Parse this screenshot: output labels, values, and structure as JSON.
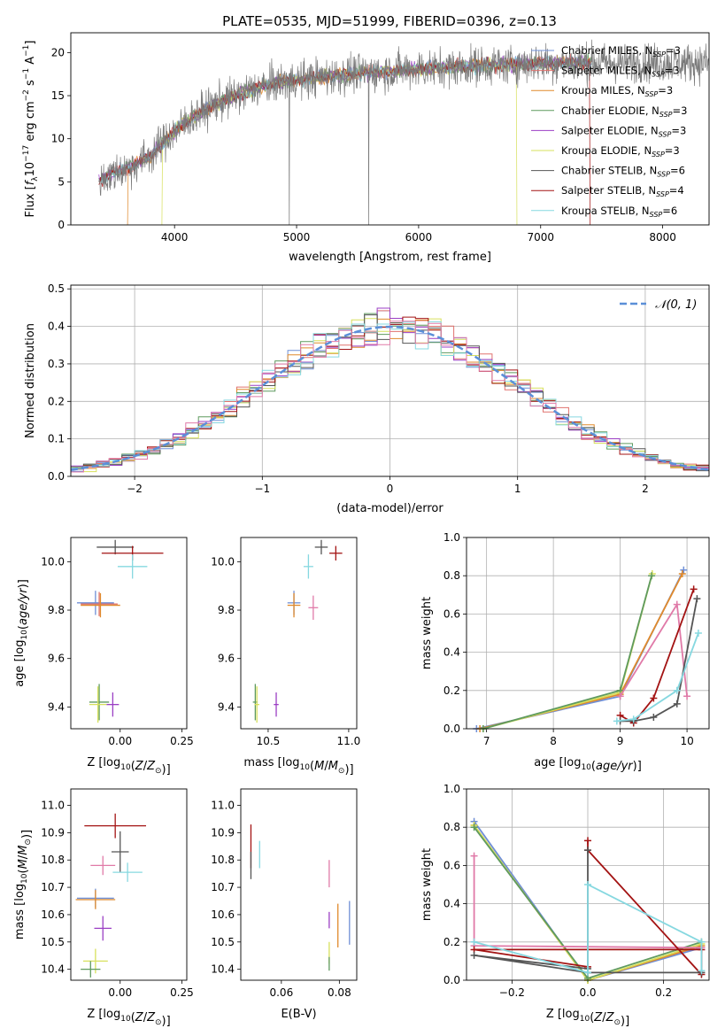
{
  "title": "PLATE=0535, MJD=51999, FIBERID=0396, z=0.13",
  "colors": {
    "chabrier_miles": "#6f8fd6",
    "salpeter_miles": "#e0726e",
    "kroupa_miles": "#e08a2c",
    "chabrier_elodie": "#5f9a5f",
    "salpeter_elodie": "#9b3fc4",
    "kroupa_elodie": "#d7e05c",
    "chabrier_stelib": "#555555",
    "salpeter_stelib": "#a31313",
    "kroupa_stelib": "#86d8e0",
    "pink": "#e07aa8",
    "gaussian": "#5b8fd8"
  },
  "chart_data": [
    {
      "id": "spectrum",
      "type": "line",
      "xlabel": "wavelength [Angstrom, rest frame]",
      "xlim": [
        3150,
        8380
      ],
      "ylim": [
        0,
        22.3
      ],
      "xticks": [
        "4000",
        "5000",
        "6000",
        "7000",
        "8000"
      ],
      "yticks": [
        "0",
        "5",
        "10",
        "15",
        "20"
      ],
      "legend_position": "upper-right",
      "legend": [
        {
          "label": "Chabrier MILES, N",
          "sub": "SSP",
          "tail": "=3",
          "color": "chabrier_miles"
        },
        {
          "label": "Salpeter MILES, N",
          "sub": "SSP",
          "tail": "=3",
          "color": "salpeter_miles"
        },
        {
          "label": "Kroupa MILES, N",
          "sub": "SSP",
          "tail": "=3",
          "color": "kroupa_miles"
        },
        {
          "label": "Chabrier ELODIE, N",
          "sub": "SSP",
          "tail": "=3",
          "color": "chabrier_elodie"
        },
        {
          "label": "Salpeter ELODIE, N",
          "sub": "SSP",
          "tail": "=3",
          "color": "salpeter_elodie"
        },
        {
          "label": "Kroupa ELODIE, N",
          "sub": "SSP",
          "tail": "=3",
          "color": "kroupa_elodie"
        },
        {
          "label": "Chabrier STELIB, N",
          "sub": "SSP",
          "tail": "=6",
          "color": "chabrier_stelib"
        },
        {
          "label": "Salpeter STELIB, N",
          "sub": "SSP",
          "tail": "=4",
          "color": "salpeter_stelib"
        },
        {
          "label": "Kroupa STELIB, N",
          "sub": "SSP",
          "tail": "=6",
          "color": "kroupa_stelib"
        }
      ],
      "continuum": [
        [
          3380,
          5.2
        ],
        [
          3500,
          6.0
        ],
        [
          3650,
          6.8
        ],
        [
          3800,
          8.0
        ],
        [
          3950,
          10.2
        ],
        [
          4100,
          12.0
        ],
        [
          4300,
          13.8
        ],
        [
          4500,
          15.0
        ],
        [
          4700,
          16.0
        ],
        [
          4900,
          16.7
        ],
        [
          5100,
          17.0
        ],
        [
          5300,
          17.3
        ],
        [
          5500,
          17.6
        ],
        [
          5700,
          17.8
        ],
        [
          5900,
          18.0
        ],
        [
          6100,
          18.2
        ],
        [
          6300,
          18.3
        ],
        [
          6500,
          18.5
        ],
        [
          6700,
          18.6
        ],
        [
          6900,
          18.7
        ],
        [
          7100,
          18.8
        ],
        [
          7300,
          18.8
        ]
      ],
      "drop_edges": [
        {
          "x": 3620,
          "model": "kroupa_miles"
        },
        {
          "x": 3900,
          "model": "kroupa_elodie"
        },
        {
          "x": 6800,
          "model": "kroupa_elodie"
        },
        {
          "x": 7400,
          "model": "salpeter_stelib"
        }
      ],
      "spikes": [
        4940,
        5590
      ]
    },
    {
      "id": "residuals",
      "type": "histogram",
      "xlabel": "(data-model)/error",
      "ylabel": "Normed distribution",
      "xlim": [
        -2.5,
        2.5
      ],
      "ylim": [
        0,
        0.51
      ],
      "xticks": [
        "−2",
        "−1",
        "0",
        "1",
        "2"
      ],
      "yticks": [
        "0.0",
        "0.1",
        "0.2",
        "0.3",
        "0.4",
        "0.5"
      ],
      "legend": "𝒩(0, 1)",
      "legend_position": "upper-right",
      "bin_width": 0.1
    },
    {
      "id": "age_vs_Z",
      "type": "errorbar",
      "xlabel": "Z [log",
      "xlabel_sub": "10",
      "xlabel_tail": "(Z/Z",
      "xlabel_sun": "⊙",
      "xlabel_end": ")]",
      "ylabel": "age  [log10(age/yr)]",
      "xlim": [
        -0.2,
        0.27
      ],
      "ylim": [
        9.31,
        10.1
      ],
      "xticks": [
        "0.00",
        "0.25"
      ],
      "yticks": [
        "9.4",
        "9.6",
        "9.8",
        "10.0"
      ],
      "points": [
        {
          "x": -0.02,
          "y": 10.06,
          "xerr": 0.15,
          "yerr": 0.06,
          "color": "chabrier_stelib"
        },
        {
          "x": 0.05,
          "y": 10.035,
          "xerr": 0.25,
          "yerr": 0.06,
          "color": "salpeter_stelib"
        },
        {
          "x": 0.05,
          "y": 9.98,
          "xerr": 0.12,
          "yerr": 0.1,
          "color": "kroupa_stelib"
        },
        {
          "x": -0.1,
          "y": 9.83,
          "xerr": 0.15,
          "yerr": 0.1,
          "color": "chabrier_miles"
        },
        {
          "x": -0.085,
          "y": 9.825,
          "xerr": 0.15,
          "yerr": 0.1,
          "color": "salpeter_miles"
        },
        {
          "x": -0.08,
          "y": 9.82,
          "xerr": 0.16,
          "yerr": 0.1,
          "color": "kroupa_miles"
        },
        {
          "x": -0.085,
          "y": 9.42,
          "xerr": 0.08,
          "yerr": 0.15,
          "color": "chabrier_elodie"
        },
        {
          "x": -0.03,
          "y": 9.41,
          "xerr": 0.05,
          "yerr": 0.1,
          "color": "salpeter_elodie"
        },
        {
          "x": -0.09,
          "y": 9.41,
          "xerr": 0.07,
          "yerr": 0.15,
          "color": "kroupa_elodie"
        }
      ]
    },
    {
      "id": "age_vs_mass",
      "type": "errorbar",
      "xlabel": "mass [log10(M/M⊙)]",
      "xlim": [
        10.33,
        11.05
      ],
      "ylim": [
        9.31,
        10.1
      ],
      "xticks": [
        "10.5",
        "11.0"
      ],
      "yticks": [
        "9.4",
        "9.6",
        "9.8",
        "10.0"
      ],
      "points": [
        {
          "x": 10.83,
          "y": 10.06,
          "xerr": 0.08,
          "yerr": 0.06,
          "color": "chabrier_stelib"
        },
        {
          "x": 10.92,
          "y": 10.035,
          "xerr": 0.08,
          "yerr": 0.06,
          "color": "salpeter_stelib"
        },
        {
          "x": 10.75,
          "y": 9.98,
          "xerr": 0.06,
          "yerr": 0.1,
          "color": "kroupa_stelib"
        },
        {
          "x": 10.66,
          "y": 9.83,
          "xerr": 0.08,
          "yerr": 0.1,
          "color": "chabrier_miles"
        },
        {
          "x": 10.78,
          "y": 9.81,
          "xerr": 0.06,
          "yerr": 0.1,
          "color": "pink"
        },
        {
          "x": 10.66,
          "y": 9.82,
          "xerr": 0.08,
          "yerr": 0.1,
          "color": "kroupa_miles"
        },
        {
          "x": 10.42,
          "y": 9.42,
          "xerr": 0.03,
          "yerr": 0.15,
          "color": "chabrier_elodie"
        },
        {
          "x": 10.55,
          "y": 9.41,
          "xerr": 0.03,
          "yerr": 0.1,
          "color": "salpeter_elodie"
        },
        {
          "x": 10.43,
          "y": 9.41,
          "xerr": 0.03,
          "yerr": 0.15,
          "color": "kroupa_elodie"
        }
      ]
    },
    {
      "id": "weight_vs_age",
      "type": "line",
      "xlabel": "age  [log10(age/yr)]",
      "ylabel": "mass weight",
      "xlim": [
        6.7,
        10.33
      ],
      "ylim": [
        0,
        1.0
      ],
      "xticks": [
        "7",
        "8",
        "9",
        "10"
      ],
      "yticks": [
        "0.0",
        "0.2",
        "0.4",
        "0.6",
        "0.8",
        "1.0"
      ],
      "series": [
        {
          "color": "chabrier_miles",
          "points": [
            [
              6.85,
              0.0
            ],
            [
              9.0,
              0.17
            ],
            [
              9.95,
              0.83
            ]
          ]
        },
        {
          "color": "kroupa_miles",
          "points": [
            [
              6.9,
              0.0
            ],
            [
              9.0,
              0.18
            ],
            [
              9.93,
              0.81
            ]
          ]
        },
        {
          "color": "kroupa_elodie",
          "points": [
            [
              6.95,
              0.0
            ],
            [
              9.0,
              0.19
            ],
            [
              9.48,
              0.81
            ]
          ]
        },
        {
          "color": "chabrier_elodie",
          "points": [
            [
              6.95,
              0.0
            ],
            [
              9.0,
              0.2
            ],
            [
              9.47,
              0.8
            ]
          ]
        },
        {
          "color": "pink",
          "points": [
            [
              9.0,
              0.17
            ],
            [
              9.85,
              0.65
            ],
            [
              10.0,
              0.17
            ]
          ]
        },
        {
          "color": "salpeter_stelib",
          "points": [
            [
              9.0,
              0.07
            ],
            [
              9.2,
              0.03
            ],
            [
              9.5,
              0.16
            ],
            [
              10.1,
              0.73
            ]
          ]
        },
        {
          "color": "chabrier_stelib",
          "points": [
            [
              9.0,
              0.04
            ],
            [
              9.2,
              0.04
            ],
            [
              9.5,
              0.06
            ],
            [
              9.85,
              0.13
            ],
            [
              10.15,
              0.68
            ]
          ]
        },
        {
          "color": "kroupa_stelib",
          "points": [
            [
              8.95,
              0.04
            ],
            [
              9.2,
              0.05
            ],
            [
              9.85,
              0.2
            ],
            [
              10.17,
              0.5
            ]
          ]
        }
      ]
    },
    {
      "id": "mass_vs_Z",
      "type": "errorbar",
      "xlabel": "Z [log10(Z/Z⊙)]",
      "ylabel": "mass [log10(M/M⊙)]",
      "xlim": [
        -0.2,
        0.27
      ],
      "ylim": [
        10.36,
        11.06
      ],
      "xticks": [
        "0.00",
        "0.25"
      ],
      "yticks": [
        "10.4",
        "10.5",
        "10.6",
        "10.7",
        "10.8",
        "10.9",
        "11.0"
      ],
      "points": [
        {
          "x": -0.02,
          "y": 10.925,
          "xerr": 0.25,
          "yerr": 0.09,
          "color": "salpeter_stelib"
        },
        {
          "x": 0.0,
          "y": 10.83,
          "xerr": 0.07,
          "yerr": 0.15,
          "color": "chabrier_stelib"
        },
        {
          "x": -0.07,
          "y": 10.78,
          "xerr": 0.1,
          "yerr": 0.07,
          "color": "pink"
        },
        {
          "x": 0.03,
          "y": 10.755,
          "xerr": 0.12,
          "yerr": 0.07,
          "color": "kroupa_stelib"
        },
        {
          "x": -0.1,
          "y": 10.66,
          "xerr": 0.15,
          "yerr": 0.07,
          "color": "chabrier_miles"
        },
        {
          "x": -0.1,
          "y": 10.655,
          "xerr": 0.16,
          "yerr": 0.07,
          "color": "kroupa_miles"
        },
        {
          "x": -0.07,
          "y": 10.55,
          "xerr": 0.07,
          "yerr": 0.09,
          "color": "salpeter_elodie"
        },
        {
          "x": -0.1,
          "y": 10.43,
          "xerr": 0.1,
          "yerr": 0.09,
          "color": "kroupa_elodie"
        },
        {
          "x": -0.12,
          "y": 10.4,
          "xerr": 0.08,
          "yerr": 0.06,
          "color": "chabrier_elodie"
        }
      ]
    },
    {
      "id": "mass_vs_ebv",
      "type": "errorbar",
      "xlabel": "E(B-V)",
      "xlim": [
        0.046,
        0.086
      ],
      "ylim": [
        10.36,
        11.06
      ],
      "xticks": [
        "0.06",
        "0.08"
      ],
      "yticks": [
        "10.4",
        "10.5",
        "10.6",
        "10.7",
        "10.8",
        "10.9",
        "11.0"
      ],
      "points": [
        {
          "x": 0.0495,
          "y": 10.85,
          "yerr": 0.16,
          "color": "salpeter_stelib"
        },
        {
          "x": 0.0495,
          "y": 10.78,
          "yerr": 0.1,
          "color": "chabrier_stelib"
        },
        {
          "x": 0.0525,
          "y": 10.82,
          "yerr": 0.1,
          "color": "kroupa_stelib"
        },
        {
          "x": 0.0765,
          "y": 10.75,
          "yerr": 0.1,
          "color": "pink"
        },
        {
          "x": 0.0765,
          "y": 10.58,
          "yerr": 0.06,
          "color": "salpeter_elodie"
        },
        {
          "x": 0.0765,
          "y": 10.46,
          "yerr": 0.08,
          "color": "kroupa_elodie"
        },
        {
          "x": 0.0765,
          "y": 10.42,
          "yerr": 0.05,
          "color": "chabrier_elodie"
        },
        {
          "x": 0.0795,
          "y": 10.56,
          "yerr": 0.16,
          "color": "kroupa_miles"
        },
        {
          "x": 0.0835,
          "y": 10.57,
          "yerr": 0.16,
          "color": "chabrier_miles"
        }
      ]
    },
    {
      "id": "weight_vs_Z",
      "type": "line",
      "xlabel": "Z [log10(Z/Z⊙)]",
      "ylabel": "mass weight",
      "xlim": [
        -0.32,
        0.32
      ],
      "ylim": [
        0,
        1.0
      ],
      "xticks": [
        "−0.2",
        "0.0",
        "0.2"
      ],
      "yticks": [
        "0.0",
        "0.2",
        "0.4",
        "0.6",
        "0.8",
        "1.0"
      ],
      "series": [
        {
          "color": "chabrier_miles",
          "points": [
            [
              -0.3,
              0.83
            ],
            [
              0.0,
              0.0
            ],
            [
              0.3,
              0.17
            ]
          ]
        },
        {
          "color": "kroupa_miles",
          "points": [
            [
              -0.3,
              0.81
            ],
            [
              0.0,
              0.0
            ],
            [
              0.3,
              0.18
            ]
          ]
        },
        {
          "color": "kroupa_elodie",
          "points": [
            [
              -0.3,
              0.81
            ],
            [
              0.0,
              0.0
            ],
            [
              0.3,
              0.19
            ]
          ]
        },
        {
          "color": "chabrier_elodie",
          "points": [
            [
              -0.3,
              0.8
            ],
            [
              0.0,
              0.01
            ],
            [
              0.3,
              0.2
            ]
          ]
        },
        {
          "color": "pink",
          "points": [
            [
              -0.3,
              0.65
            ],
            [
              -0.3,
              0.18
            ],
            [
              0.3,
              0.17
            ]
          ]
        },
        {
          "color": "salpeter_stelib",
          "points": [
            [
              0.0,
              0.73
            ],
            [
              0.0,
              0.68
            ],
            [
              0.3,
              0.03
            ],
            [
              0.3,
              0.16
            ],
            [
              -0.3,
              0.16
            ],
            [
              0.0,
              0.07
            ]
          ]
        },
        {
          "color": "chabrier_stelib",
          "points": [
            [
              0.0,
              0.68
            ],
            [
              0.0,
              0.06
            ],
            [
              -0.3,
              0.13
            ],
            [
              0.0,
              0.04
            ],
            [
              0.3,
              0.04
            ]
          ]
        },
        {
          "color": "kroupa_stelib",
          "points": [
            [
              -0.3,
              0.2
            ],
            [
              0.0,
              0.04
            ],
            [
              0.0,
              0.5
            ],
            [
              0.3,
              0.2
            ],
            [
              0.3,
              0.05
            ]
          ]
        }
      ]
    }
  ]
}
